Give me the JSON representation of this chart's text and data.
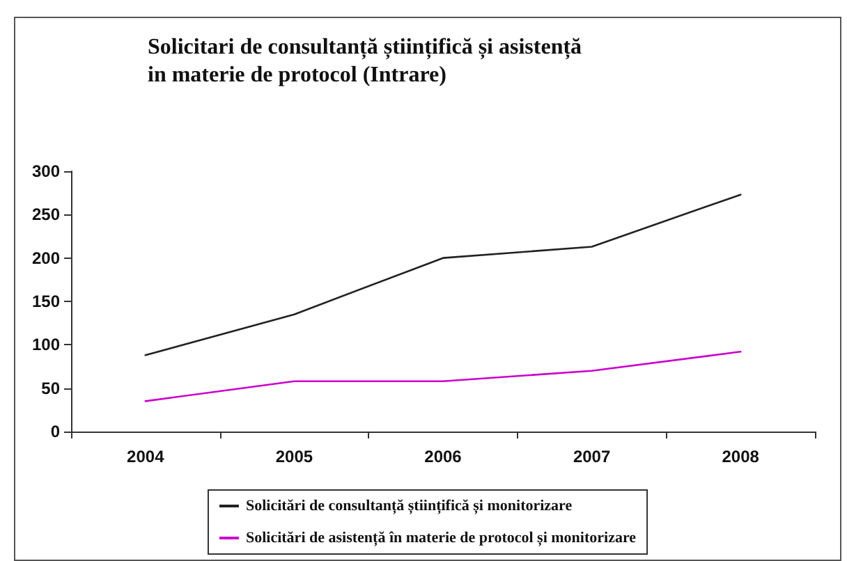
{
  "chart_data": {
    "type": "line",
    "title": "Solicitari de consultanță științifică și asistență in materie de protocol (Intrare)",
    "categories": [
      "2004",
      "2005",
      "2006",
      "2007",
      "2008"
    ],
    "series": [
      {
        "name": "Solicitări de consultanță științifică și monitorizare",
        "color": "#222222",
        "values": [
          88,
          135,
          200,
          213,
          273
        ]
      },
      {
        "name": "Solicitări de asistență în materie de protocol și monitorizare",
        "color": "#cc00cc",
        "values": [
          35,
          58,
          58,
          70,
          92
        ]
      }
    ],
    "ylim": [
      0,
      300
    ],
    "yticks": [
      0,
      50,
      100,
      150,
      200,
      250,
      300
    ],
    "grid": false,
    "legend": "bottom",
    "marker": "none",
    "line_style": "solid"
  }
}
